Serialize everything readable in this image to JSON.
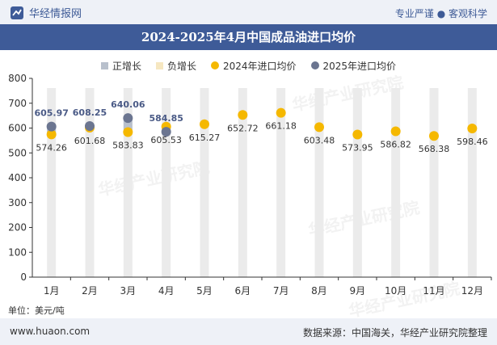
{
  "header": {
    "brand": "华经情报网",
    "tagline": "专业严谨 ● 客观科学"
  },
  "title": "2024-2025年4月中国成品油进口均价",
  "legend": {
    "up": "正增长",
    "down": "负增长",
    "s2024": "2024年进口均价",
    "s2025": "2025年进口均价"
  },
  "unit": "单位：美元/吨",
  "footer": {
    "site": "www.huaon.com",
    "source": "数据来源：中国海关，华经产业研究院整理"
  },
  "watermark": "华经产业研究院",
  "colors": {
    "title_bg": "#3e5b98",
    "band_bg": "#eef1f7",
    "s2024": "#f5b800",
    "s2025": "#6b7590",
    "up": "#b8c0cc",
    "down": "#f6e7c1",
    "column": "#ebebeb"
  },
  "chart_data": {
    "type": "scatter",
    "categories": [
      "1月",
      "2月",
      "3月",
      "4月",
      "5月",
      "6月",
      "7月",
      "8月",
      "9月",
      "10月",
      "11月",
      "12月"
    ],
    "series": [
      {
        "name": "2024年进口均价",
        "values": [
          574.26,
          601.68,
          583.83,
          605.53,
          615.27,
          652.72,
          661.18,
          603.48,
          573.95,
          586.82,
          568.38,
          598.46
        ]
      },
      {
        "name": "2025年进口均价",
        "values": [
          605.97,
          608.25,
          640.06,
          584.85,
          null,
          null,
          null,
          null,
          null,
          null,
          null,
          null
        ]
      }
    ],
    "yticks": [
      0,
      100,
      200,
      300,
      400,
      500,
      600,
      700,
      800
    ],
    "ylim": [
      0,
      800
    ],
    "ylabel": "单位：美元/吨",
    "grid": false,
    "legend_position": "top"
  }
}
